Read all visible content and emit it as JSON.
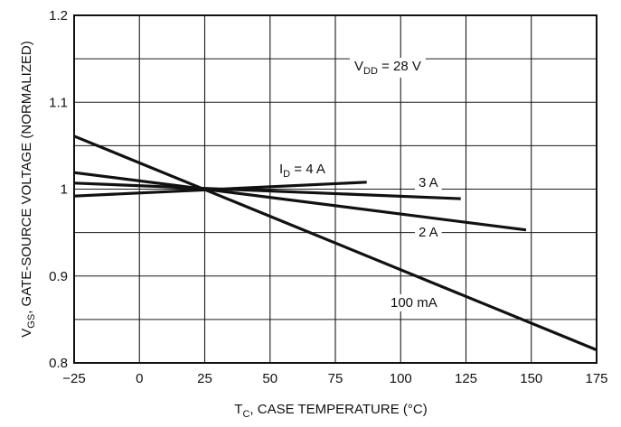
{
  "chart_data": {
    "type": "line",
    "x_axis": {
      "label_main": "T",
      "label_sub": "C",
      "label_rest": ", CASE TEMPERATURE (°C)",
      "lim": [
        -25,
        175
      ],
      "ticks": [
        -25,
        0,
        25,
        50,
        75,
        100,
        125,
        150,
        175
      ],
      "tick_labels": [
        "−25",
        "0",
        "25",
        "50",
        "75",
        "100",
        "125",
        "150",
        "175"
      ]
    },
    "y_axis": {
      "label_main": "V",
      "label_sub": "GS",
      "label_rest": ", GATE-SOURCE VOLTAGE (NORMALIZED)",
      "lim": [
        0.8,
        1.2
      ],
      "ticks": [
        0.8,
        0.9,
        1.0,
        1.1,
        1.2
      ],
      "tick_labels": [
        "0.8",
        "0.9",
        "1",
        "1.1",
        "1.2"
      ]
    },
    "grid": true,
    "legend": "none",
    "series": [
      {
        "name": "100 mA",
        "x": [
          -25,
          175
        ],
        "y": [
          1.061,
          0.815
        ]
      },
      {
        "name": "2 A",
        "x": [
          -25,
          148
        ],
        "y": [
          1.019,
          0.953
        ]
      },
      {
        "name": "3 A",
        "x": [
          -25,
          123
        ],
        "y": [
          1.007,
          0.989
        ]
      },
      {
        "name": "4 A",
        "x": [
          -25,
          87
        ],
        "y": [
          0.992,
          1.008
        ]
      }
    ],
    "annotations": {
      "vdd": {
        "main": "V",
        "sub": "DD",
        "rest": " = 28 V"
      },
      "id4": {
        "main": "I",
        "sub": "D",
        "rest": " = 4 A"
      },
      "id3": "3 A",
      "id2": "2 A",
      "id100": "100 mA"
    },
    "colors": {
      "line": "#111111",
      "grid": "#1a1a1a",
      "background": "#ffffff"
    }
  }
}
